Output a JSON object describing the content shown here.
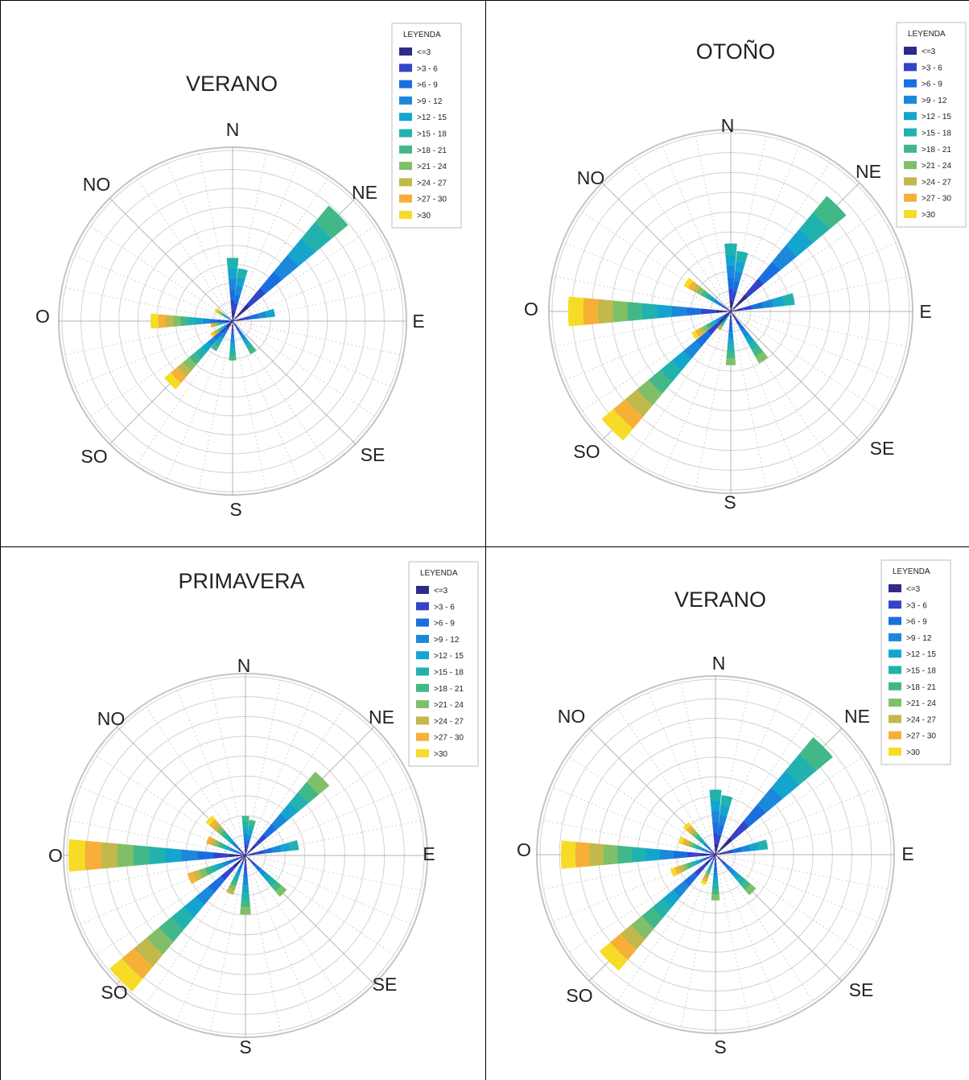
{
  "legend": {
    "title": "LEYENDA",
    "items": [
      "<=3",
      ">3 - 6",
      ">6 - 9",
      ">9 - 12",
      ">12 - 15",
      ">15 - 18",
      ">18 - 21",
      ">21 - 24",
      ">24 - 27",
      ">27 - 30",
      ">30"
    ],
    "colors": [
      "#2f2a8a",
      "#3344c8",
      "#1a6fe0",
      "#1b88da",
      "#14a5cf",
      "#22b2ae",
      "#42b888",
      "#80bf68",
      "#c2b84c",
      "#f6b038",
      "#f6dc26"
    ]
  },
  "directions": [
    "N",
    "NE",
    "E",
    "SE",
    "S",
    "SO",
    "O",
    "NO"
  ],
  "chart_data": [
    {
      "type": "polar_stacked_bar",
      "title": "VERANO",
      "petals": [
        {
          "angle": 0,
          "len": 0.37,
          "top": 5
        },
        {
          "angle": 11.25,
          "len": 0.31,
          "top": 5
        },
        {
          "angle": 45,
          "len": 0.88,
          "top": 6
        },
        {
          "angle": 78.75,
          "len": 0.25,
          "top": 4
        },
        {
          "angle": 146.25,
          "len": 0.22,
          "top": 6
        },
        {
          "angle": 180,
          "len": 0.23,
          "top": 6
        },
        {
          "angle": 213.75,
          "len": 0.2,
          "top": 6
        },
        {
          "angle": 225,
          "len": 0.52,
          "top": 10
        },
        {
          "angle": 236.25,
          "len": 0.15,
          "top": 10
        },
        {
          "angle": 258.75,
          "len": 0.13,
          "top": 9
        },
        {
          "angle": 270,
          "len": 0.48,
          "top": 10
        },
        {
          "angle": 303.75,
          "len": 0.12,
          "top": 10
        }
      ]
    },
    {
      "type": "polar_stacked_bar",
      "title": "OTOÑO",
      "petals": [
        {
          "angle": 0,
          "len": 0.38,
          "top": 5
        },
        {
          "angle": 11.25,
          "len": 0.34,
          "top": 5
        },
        {
          "angle": 45,
          "len": 0.84,
          "top": 6
        },
        {
          "angle": 78.75,
          "len": 0.36,
          "top": 5
        },
        {
          "angle": 146.25,
          "len": 0.33,
          "top": 7
        },
        {
          "angle": 180,
          "len": 0.3,
          "top": 7
        },
        {
          "angle": 213.75,
          "len": 0.12,
          "top": 8
        },
        {
          "angle": 225,
          "len": 0.94,
          "top": 10
        },
        {
          "angle": 236.25,
          "len": 0.25,
          "top": 10
        },
        {
          "angle": 270,
          "len": 0.91,
          "top": 10
        },
        {
          "angle": 303.75,
          "len": 0.3,
          "top": 10
        }
      ]
    },
    {
      "type": "polar_stacked_bar",
      "title": "PRIMAVERA",
      "petals": [
        {
          "angle": 0,
          "len": 0.22,
          "top": 6
        },
        {
          "angle": 11.25,
          "len": 0.2,
          "top": 6
        },
        {
          "angle": 45,
          "len": 0.61,
          "top": 7
        },
        {
          "angle": 78.75,
          "len": 0.3,
          "top": 5
        },
        {
          "angle": 135,
          "len": 0.3,
          "top": 7
        },
        {
          "angle": 180,
          "len": 0.33,
          "top": 7
        },
        {
          "angle": 202.5,
          "len": 0.23,
          "top": 8
        },
        {
          "angle": 225,
          "len": 0.99,
          "top": 10
        },
        {
          "angle": 247.5,
          "len": 0.34,
          "top": 9
        },
        {
          "angle": 270,
          "len": 0.99,
          "top": 10
        },
        {
          "angle": 292.5,
          "len": 0.23,
          "top": 9
        },
        {
          "angle": 315,
          "len": 0.29,
          "top": 10
        }
      ]
    },
    {
      "type": "polar_stacked_bar",
      "title": "VERANO",
      "petals": [
        {
          "angle": 0,
          "len": 0.37,
          "top": 5
        },
        {
          "angle": 11.25,
          "len": 0.34,
          "top": 5
        },
        {
          "angle": 45,
          "len": 0.87,
          "top": 6
        },
        {
          "angle": 78.75,
          "len": 0.3,
          "top": 5
        },
        {
          "angle": 135,
          "len": 0.3,
          "top": 7
        },
        {
          "angle": 180,
          "len": 0.26,
          "top": 7
        },
        {
          "angle": 202.5,
          "len": 0.18,
          "top": 10
        },
        {
          "angle": 225,
          "len": 0.86,
          "top": 10
        },
        {
          "angle": 247.5,
          "len": 0.27,
          "top": 10
        },
        {
          "angle": 270,
          "len": 0.88,
          "top": 10
        },
        {
          "angle": 292.5,
          "len": 0.22,
          "top": 10
        },
        {
          "angle": 315,
          "len": 0.24,
          "top": 10
        }
      ]
    }
  ]
}
